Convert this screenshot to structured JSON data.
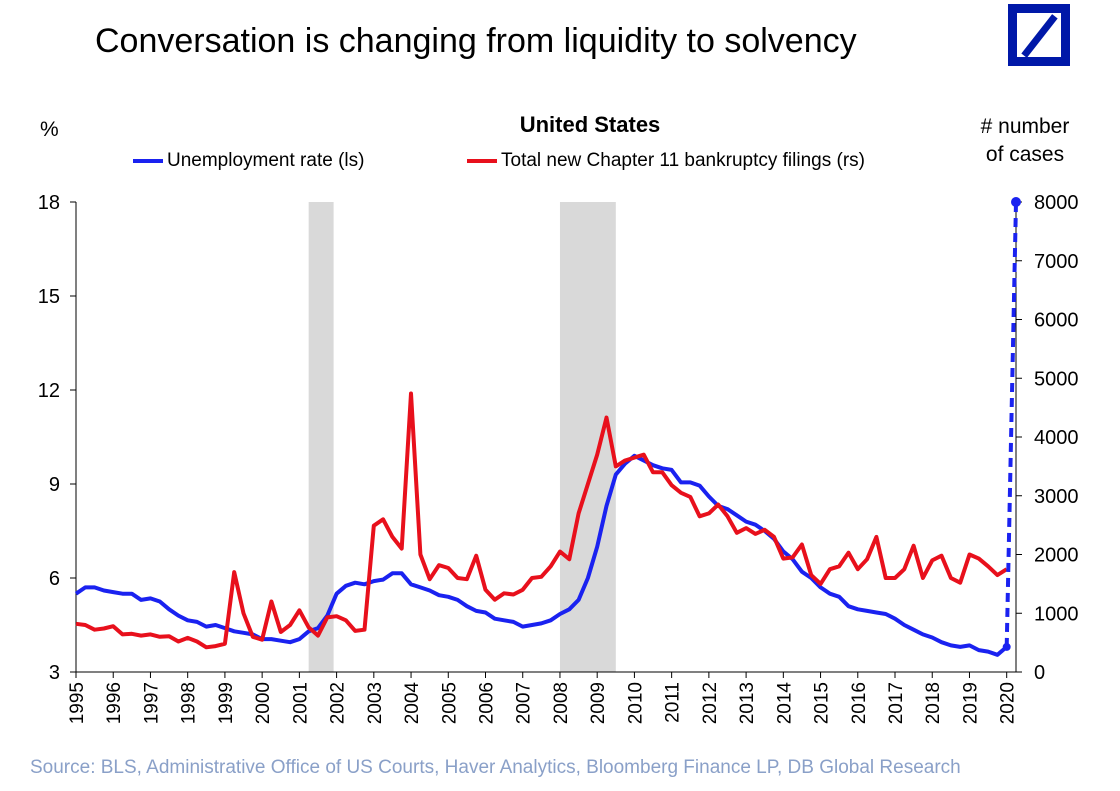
{
  "title": "Conversation is changing from liquidity to solvency",
  "logo": "deutsche-bank-logo",
  "source": "Source: BLS, Administrative Office of US Courts, Haver Analytics, Bloomberg Finance LP,  DB Global  Research",
  "colors": {
    "unemployment": "#1a22f0",
    "bankruptcy": "#e8101c",
    "recession": "#d9d9d9",
    "logo": "#0018a8"
  },
  "chart_data": {
    "type": "line",
    "title": "United States",
    "left_axis_unit": "%",
    "right_axis_unit_line1": "# number",
    "right_axis_unit_line2": "of cases",
    "ylim_left": [
      3,
      18
    ],
    "yticks_left": [
      "3",
      "6",
      "9",
      "12",
      "15",
      "18"
    ],
    "ylim_right": [
      0,
      8000
    ],
    "yticks_right": [
      "0",
      "1000",
      "2000",
      "3000",
      "4000",
      "5000",
      "6000",
      "7000",
      "8000"
    ],
    "xlim": [
      1995,
      2020.25
    ],
    "xticks": [
      "1995",
      "1996",
      "1997",
      "1998",
      "1999",
      "2000",
      "2001",
      "2002",
      "2003",
      "2004",
      "2005",
      "2006",
      "2007",
      "2008",
      "2009",
      "2010",
      "2011",
      "2012",
      "2013",
      "2014",
      "2015",
      "2016",
      "2017",
      "2018",
      "2019",
      "2020"
    ],
    "grid": false,
    "legend_position": "top",
    "recessions": [
      [
        2001.25,
        2001.92
      ],
      [
        2008.0,
        2009.5
      ]
    ],
    "series": [
      {
        "name": "Unemployment rate (ls)",
        "axis": "left",
        "points": [
          [
            1995.0,
            5.5
          ],
          [
            1995.25,
            5.7
          ],
          [
            1995.5,
            5.7
          ],
          [
            1995.75,
            5.6
          ],
          [
            1996.0,
            5.55
          ],
          [
            1996.25,
            5.5
          ],
          [
            1996.5,
            5.5
          ],
          [
            1996.75,
            5.3
          ],
          [
            1997.0,
            5.35
          ],
          [
            1997.25,
            5.25
          ],
          [
            1997.5,
            5.0
          ],
          [
            1997.75,
            4.8
          ],
          [
            1998.0,
            4.65
          ],
          [
            1998.25,
            4.6
          ],
          [
            1998.5,
            4.45
          ],
          [
            1998.75,
            4.5
          ],
          [
            1999.0,
            4.4
          ],
          [
            1999.25,
            4.3
          ],
          [
            1999.5,
            4.25
          ],
          [
            1999.75,
            4.2
          ],
          [
            2000.0,
            4.05
          ],
          [
            2000.25,
            4.05
          ],
          [
            2000.5,
            4.0
          ],
          [
            2000.75,
            3.95
          ],
          [
            2001.0,
            4.05
          ],
          [
            2001.25,
            4.3
          ],
          [
            2001.5,
            4.4
          ],
          [
            2001.75,
            4.8
          ],
          [
            2002.0,
            5.5
          ],
          [
            2002.25,
            5.75
          ],
          [
            2002.5,
            5.85
          ],
          [
            2002.75,
            5.8
          ],
          [
            2003.0,
            5.9
          ],
          [
            2003.25,
            5.95
          ],
          [
            2003.5,
            6.15
          ],
          [
            2003.75,
            6.15
          ],
          [
            2004.0,
            5.8
          ],
          [
            2004.25,
            5.7
          ],
          [
            2004.5,
            5.6
          ],
          [
            2004.75,
            5.45
          ],
          [
            2005.0,
            5.4
          ],
          [
            2005.25,
            5.3
          ],
          [
            2005.5,
            5.1
          ],
          [
            2005.75,
            4.95
          ],
          [
            2006.0,
            4.9
          ],
          [
            2006.25,
            4.7
          ],
          [
            2006.5,
            4.65
          ],
          [
            2006.75,
            4.6
          ],
          [
            2007.0,
            4.45
          ],
          [
            2007.25,
            4.5
          ],
          [
            2007.5,
            4.55
          ],
          [
            2007.75,
            4.65
          ],
          [
            2008.0,
            4.85
          ],
          [
            2008.25,
            5.0
          ],
          [
            2008.5,
            5.3
          ],
          [
            2008.75,
            6.0
          ],
          [
            2009.0,
            7.0
          ],
          [
            2009.25,
            8.3
          ],
          [
            2009.5,
            9.3
          ],
          [
            2009.75,
            9.65
          ],
          [
            2010.0,
            9.9
          ],
          [
            2010.25,
            9.75
          ],
          [
            2010.5,
            9.6
          ],
          [
            2010.75,
            9.5
          ],
          [
            2011.0,
            9.45
          ],
          [
            2011.25,
            9.05
          ],
          [
            2011.5,
            9.05
          ],
          [
            2011.75,
            8.95
          ],
          [
            2012.0,
            8.6
          ],
          [
            2012.25,
            8.3
          ],
          [
            2012.5,
            8.2
          ],
          [
            2012.75,
            8.0
          ],
          [
            2013.0,
            7.8
          ],
          [
            2013.25,
            7.7
          ],
          [
            2013.5,
            7.5
          ],
          [
            2013.75,
            7.25
          ],
          [
            2014.0,
            6.85
          ],
          [
            2014.25,
            6.6
          ],
          [
            2014.5,
            6.2
          ],
          [
            2014.75,
            6.0
          ],
          [
            2015.0,
            5.7
          ],
          [
            2015.25,
            5.5
          ],
          [
            2015.5,
            5.4
          ],
          [
            2015.75,
            5.1
          ],
          [
            2016.0,
            5.0
          ],
          [
            2016.25,
            4.95
          ],
          [
            2016.5,
            4.9
          ],
          [
            2016.75,
            4.85
          ],
          [
            2017.0,
            4.7
          ],
          [
            2017.25,
            4.5
          ],
          [
            2017.5,
            4.35
          ],
          [
            2017.75,
            4.2
          ],
          [
            2018.0,
            4.1
          ],
          [
            2018.25,
            3.95
          ],
          [
            2018.5,
            3.85
          ],
          [
            2018.75,
            3.8
          ],
          [
            2019.0,
            3.85
          ],
          [
            2019.25,
            3.7
          ],
          [
            2019.5,
            3.65
          ],
          [
            2019.75,
            3.55
          ],
          [
            2020.0,
            3.8
          ]
        ]
      },
      {
        "name": "Total new Chapter 11 bankruptcy filings (rs)",
        "axis": "right",
        "points": [
          [
            1995.0,
            820
          ],
          [
            1995.25,
            800
          ],
          [
            1995.5,
            720
          ],
          [
            1995.75,
            740
          ],
          [
            1996.0,
            780
          ],
          [
            1996.25,
            640
          ],
          [
            1996.5,
            650
          ],
          [
            1996.75,
            620
          ],
          [
            1997.0,
            640
          ],
          [
            1997.25,
            600
          ],
          [
            1997.5,
            610
          ],
          [
            1997.75,
            520
          ],
          [
            1998.0,
            580
          ],
          [
            1998.25,
            520
          ],
          [
            1998.5,
            420
          ],
          [
            1998.75,
            440
          ],
          [
            1999.0,
            480
          ],
          [
            1999.25,
            1700
          ],
          [
            1999.5,
            1000
          ],
          [
            1999.75,
            600
          ],
          [
            2000.0,
            550
          ],
          [
            2000.25,
            1200
          ],
          [
            2000.5,
            680
          ],
          [
            2000.75,
            800
          ],
          [
            2001.0,
            1050
          ],
          [
            2001.25,
            760
          ],
          [
            2001.5,
            620
          ],
          [
            2001.75,
            930
          ],
          [
            2002.0,
            950
          ],
          [
            2002.25,
            880
          ],
          [
            2002.5,
            700
          ],
          [
            2002.75,
            720
          ],
          [
            2003.0,
            2490
          ],
          [
            2003.25,
            2600
          ],
          [
            2003.5,
            2300
          ],
          [
            2003.75,
            2100
          ],
          [
            2004.0,
            4740
          ],
          [
            2004.25,
            2000
          ],
          [
            2004.5,
            1580
          ],
          [
            2004.75,
            1820
          ],
          [
            2005.0,
            1770
          ],
          [
            2005.25,
            1600
          ],
          [
            2005.5,
            1580
          ],
          [
            2005.75,
            1980
          ],
          [
            2006.0,
            1400
          ],
          [
            2006.25,
            1230
          ],
          [
            2006.5,
            1340
          ],
          [
            2006.75,
            1320
          ],
          [
            2007.0,
            1400
          ],
          [
            2007.25,
            1600
          ],
          [
            2007.5,
            1620
          ],
          [
            2007.75,
            1800
          ],
          [
            2008.0,
            2050
          ],
          [
            2008.25,
            1920
          ],
          [
            2008.5,
            2700
          ],
          [
            2008.75,
            3200
          ],
          [
            2009.0,
            3700
          ],
          [
            2009.25,
            4330
          ],
          [
            2009.5,
            3500
          ],
          [
            2009.75,
            3600
          ],
          [
            2010.0,
            3650
          ],
          [
            2010.25,
            3700
          ],
          [
            2010.5,
            3400
          ],
          [
            2010.75,
            3400
          ],
          [
            2011.0,
            3180
          ],
          [
            2011.25,
            3050
          ],
          [
            2011.5,
            2980
          ],
          [
            2011.75,
            2650
          ],
          [
            2012.0,
            2700
          ],
          [
            2012.25,
            2850
          ],
          [
            2012.5,
            2650
          ],
          [
            2012.75,
            2370
          ],
          [
            2013.0,
            2450
          ],
          [
            2013.25,
            2350
          ],
          [
            2013.5,
            2420
          ],
          [
            2013.75,
            2300
          ],
          [
            2014.0,
            1930
          ],
          [
            2014.25,
            1950
          ],
          [
            2014.5,
            2170
          ],
          [
            2014.75,
            1650
          ],
          [
            2015.0,
            1500
          ],
          [
            2015.25,
            1750
          ],
          [
            2015.5,
            1800
          ],
          [
            2015.75,
            2030
          ],
          [
            2016.0,
            1750
          ],
          [
            2016.25,
            1920
          ],
          [
            2016.5,
            2300
          ],
          [
            2016.75,
            1600
          ],
          [
            2017.0,
            1600
          ],
          [
            2017.25,
            1750
          ],
          [
            2017.5,
            2150
          ],
          [
            2017.75,
            1600
          ],
          [
            2018.0,
            1900
          ],
          [
            2018.25,
            1980
          ],
          [
            2018.5,
            1600
          ],
          [
            2018.75,
            1520
          ],
          [
            2019.0,
            2000
          ],
          [
            2019.25,
            1930
          ],
          [
            2019.5,
            1800
          ],
          [
            2019.75,
            1650
          ],
          [
            2020.0,
            1750
          ]
        ]
      }
    ],
    "projection": {
      "axis": "left",
      "from": [
        2020.0,
        3.8
      ],
      "to": [
        2020.25,
        18.0
      ],
      "style": "dashed"
    }
  },
  "legend": {
    "unemployment_label": "Unemployment rate (ls)",
    "bankruptcy_label": "Total new Chapter 11 bankruptcy filings (rs)"
  }
}
